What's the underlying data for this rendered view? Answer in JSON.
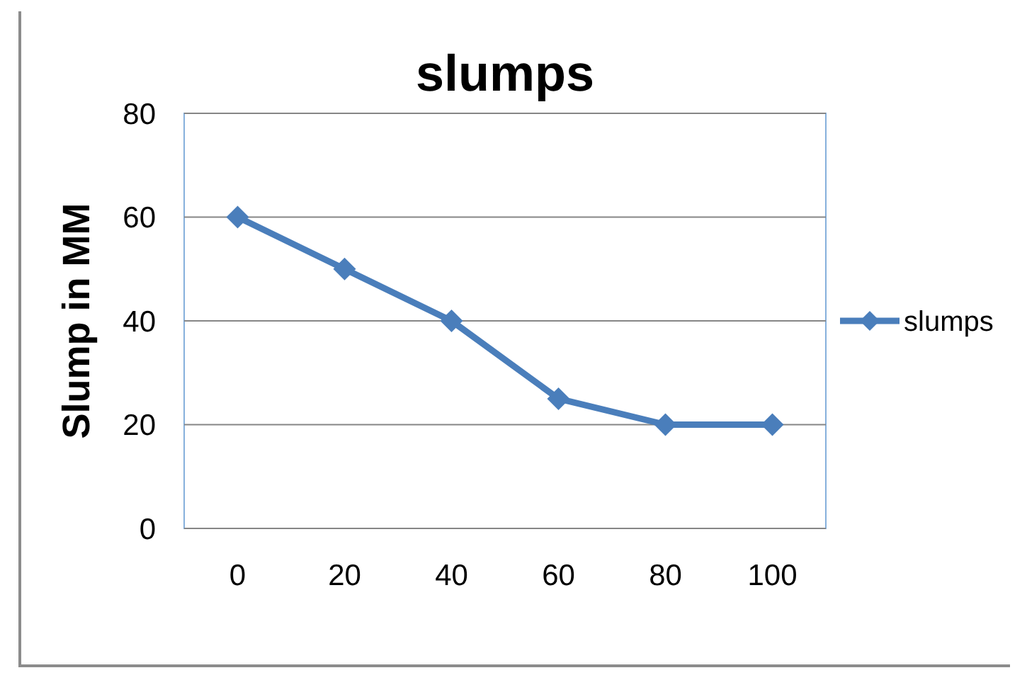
{
  "chart_data": {
    "type": "line",
    "title": "slumps",
    "ylabel": "Slump in MM",
    "categories": [
      "0",
      "20",
      "40",
      "60",
      "80",
      "100"
    ],
    "series": [
      {
        "name": "slumps",
        "color": "#4a7ebb",
        "values": [
          60,
          50,
          40,
          25,
          20,
          20
        ]
      }
    ],
    "ylim": [
      0,
      80
    ],
    "yticks": [
      0,
      20,
      40,
      60,
      80
    ],
    "grid": "y",
    "legend": "right",
    "marker": "diamond",
    "line_style": "solid"
  }
}
